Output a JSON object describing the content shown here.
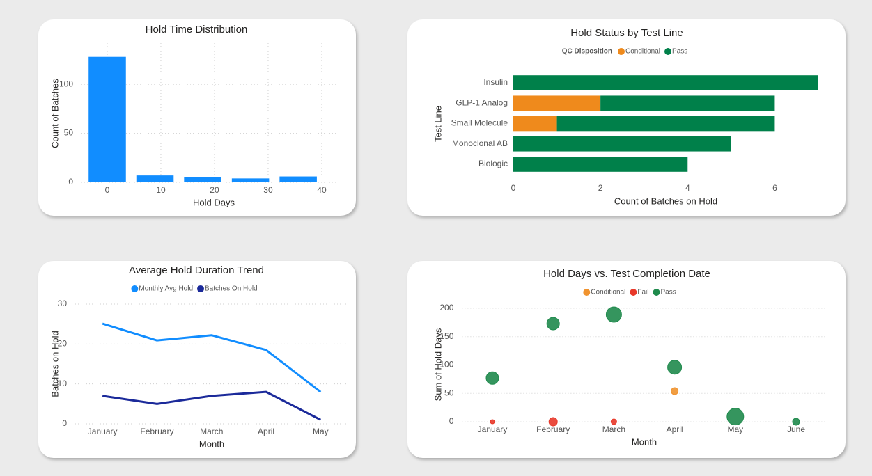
{
  "chart_data": [
    {
      "type": "histogram",
      "title": "Hold Time Distribution",
      "xlabel": "Hold Days",
      "ylabel": "Count of Batches",
      "bins": [
        -3.6,
        5.3,
        14.2,
        23.1,
        32.0,
        40.9
      ],
      "counts": [
        128,
        7,
        5,
        4,
        6
      ],
      "color": "#118dff",
      "xlim": [
        -4.8,
        43.9
      ],
      "ylim": [
        0,
        142
      ],
      "xticks": [
        0,
        10,
        20,
        30,
        40
      ],
      "yticks": [
        0,
        50,
        100
      ],
      "grid": true
    },
    {
      "type": "bar",
      "orientation": "horizontal",
      "stacked": true,
      "title": "Hold Status by Test Line",
      "xlabel": "Count of Batches on Hold",
      "ylabel": "Test Line",
      "legend_title": "QC Disposition",
      "legend": "top",
      "categories": [
        "Insulin",
        "GLP-1 Analog",
        "Small Molecule",
        "Monoclonal AB",
        "Biologic"
      ],
      "series": [
        {
          "name": "Conditional",
          "color": "#ef8a1c",
          "values": [
            0,
            2,
            1,
            0,
            0
          ]
        },
        {
          "name": "Pass",
          "color": "#00804a",
          "values": [
            7,
            4,
            5,
            5,
            4
          ]
        }
      ],
      "xlim": [
        0,
        7
      ],
      "xticks": [
        0,
        2,
        4,
        6
      ],
      "grid": false
    },
    {
      "type": "line",
      "title": "Average Hold Duration Trend",
      "xlabel": "Month",
      "ylabel": "Batches on Hold",
      "legend": "top",
      "categories": [
        "January",
        "February",
        "March",
        "April",
        "May"
      ],
      "series": [
        {
          "name": "Monthly Avg Hold",
          "color": "#118dff",
          "values": [
            25.1,
            20.9,
            22.2,
            18.5,
            8.0
          ]
        },
        {
          "name": "Batches On Hold",
          "color": "#1b2a9a",
          "values": [
            7,
            5,
            7,
            8,
            1
          ]
        }
      ],
      "ylim": [
        0,
        30
      ],
      "yticks": [
        0,
        10,
        20,
        30
      ],
      "grid": true
    },
    {
      "type": "scatter",
      "title": "Hold Days vs. Test Completion Date",
      "xlabel": "Month",
      "ylabel": "Sum of Hold Days",
      "legend": "top",
      "categories": [
        "January",
        "February",
        "March",
        "April",
        "May",
        "June"
      ],
      "series": [
        {
          "name": "Conditional",
          "color": "#f0932f",
          "values": [
            null,
            null,
            null,
            54,
            null,
            null
          ],
          "sizes": [
            null,
            null,
            null,
            5,
            null,
            null
          ]
        },
        {
          "name": "Fail",
          "color": "#e8392a",
          "values": [
            0,
            0,
            0,
            null,
            null,
            null
          ],
          "sizes": [
            3,
            6,
            4,
            null,
            null,
            null
          ]
        },
        {
          "name": "Pass",
          "color": "#1f8a4c",
          "values": [
            77,
            173,
            189,
            96,
            9,
            0
          ],
          "sizes": [
            9,
            9,
            11,
            10,
            12,
            5
          ]
        }
      ],
      "ylim": [
        0,
        200
      ],
      "yticks": [
        0,
        50,
        100,
        150,
        200
      ],
      "grid": true
    }
  ]
}
